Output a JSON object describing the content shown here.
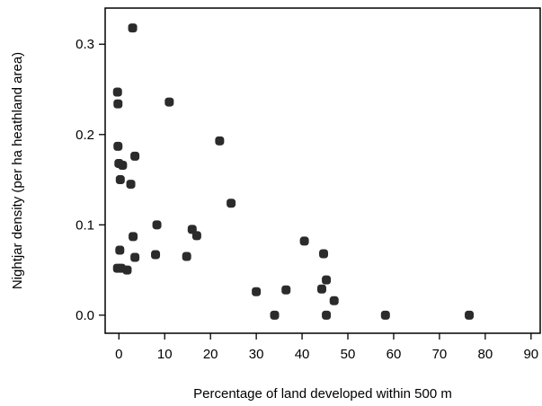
{
  "chart_data": {
    "type": "scatter",
    "xlabel": "Percentage of land developed within 500 m",
    "ylabel": "Nightjar density (per ha heathland area)",
    "xlim": [
      -3,
      92
    ],
    "ylim": [
      -0.02,
      0.34
    ],
    "xticks": [
      0,
      10,
      20,
      30,
      40,
      50,
      60,
      70,
      80,
      90
    ],
    "xtick_labels": [
      "0",
      "10",
      "20",
      "30",
      "40",
      "50",
      "60",
      "70",
      "80",
      "90"
    ],
    "yticks": [
      0.0,
      0.1,
      0.2,
      0.3
    ],
    "ytick_labels": [
      "0.0",
      "0.1",
      "0.2",
      "0.3"
    ],
    "grid": false,
    "marker_color": "#2b2b2b",
    "points": [
      {
        "x": 3.0,
        "y": 0.318
      },
      {
        "x": -0.3,
        "y": 0.247
      },
      {
        "x": -0.2,
        "y": 0.234
      },
      {
        "x": 11.0,
        "y": 0.236
      },
      {
        "x": 22.0,
        "y": 0.193
      },
      {
        "x": -0.2,
        "y": 0.187
      },
      {
        "x": 3.5,
        "y": 0.176
      },
      {
        "x": 0.0,
        "y": 0.168
      },
      {
        "x": 0.8,
        "y": 0.166
      },
      {
        "x": 0.3,
        "y": 0.15
      },
      {
        "x": 2.6,
        "y": 0.145
      },
      {
        "x": 24.5,
        "y": 0.124
      },
      {
        "x": 8.3,
        "y": 0.1
      },
      {
        "x": 16.0,
        "y": 0.095
      },
      {
        "x": 17.0,
        "y": 0.088
      },
      {
        "x": 3.1,
        "y": 0.087
      },
      {
        "x": 3.5,
        "y": 0.064
      },
      {
        "x": 0.2,
        "y": 0.072
      },
      {
        "x": 8.0,
        "y": 0.067
      },
      {
        "x": 14.8,
        "y": 0.065
      },
      {
        "x": -0.3,
        "y": 0.052
      },
      {
        "x": 0.5,
        "y": 0.052
      },
      {
        "x": 1.8,
        "y": 0.05
      },
      {
        "x": 40.5,
        "y": 0.082
      },
      {
        "x": 44.7,
        "y": 0.068
      },
      {
        "x": 45.3,
        "y": 0.039
      },
      {
        "x": 44.3,
        "y": 0.029
      },
      {
        "x": 47.0,
        "y": 0.016
      },
      {
        "x": 30.0,
        "y": 0.026
      },
      {
        "x": 36.5,
        "y": 0.028
      },
      {
        "x": 34.0,
        "y": 0.0
      },
      {
        "x": 45.3,
        "y": 0.0
      },
      {
        "x": 58.2,
        "y": 0.0
      },
      {
        "x": 76.5,
        "y": 0.0
      }
    ]
  }
}
